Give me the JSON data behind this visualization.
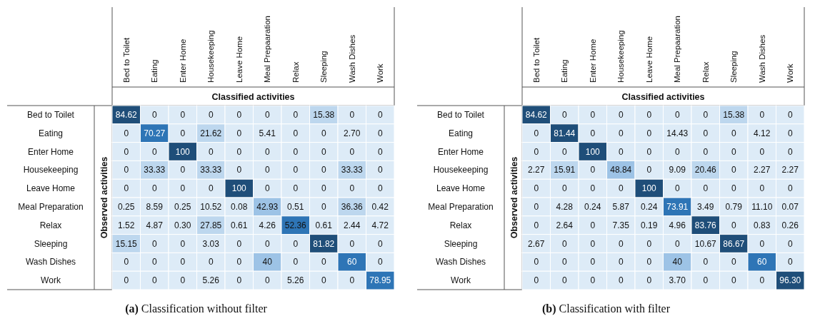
{
  "chart_data": [
    {
      "type": "heatmap",
      "title": "(a) Classification without filter",
      "xlabel": "Classified activities",
      "ylabel": "Observed activities",
      "categories": [
        "Bed to Toilet",
        "Eating",
        "Enter Home",
        "Housekeeping",
        "Leave Home",
        "Meal Prepaaration",
        "Relax",
        "Sleeping",
        "Wash Dishes",
        "Work"
      ],
      "y_categories": [
        "Bed to Toilet",
        "Eating",
        "Enter Home",
        "Housekeeping",
        "Leave Home",
        "Meal Preparation",
        "Relax",
        "Sleeping",
        "Wash Dishes",
        "Work"
      ],
      "cells": [
        [
          84.62,
          0,
          0,
          0,
          0,
          0,
          0,
          15.38,
          0,
          0
        ],
        [
          0,
          70.27,
          0,
          21.62,
          0,
          5.41,
          0,
          0,
          2.7,
          0
        ],
        [
          0,
          0,
          100,
          0,
          0,
          0,
          0,
          0,
          0,
          0
        ],
        [
          0,
          33.33,
          0,
          33.33,
          0,
          0,
          0,
          0,
          33.33,
          0
        ],
        [
          0,
          0,
          0,
          0,
          100,
          0,
          0,
          0,
          0,
          0
        ],
        [
          0.25,
          8.59,
          0.25,
          10.52,
          0.08,
          42.93,
          0.51,
          0,
          36.36,
          0.42
        ],
        [
          1.52,
          4.87,
          0.3,
          27.85,
          0.61,
          4.26,
          52.36,
          0.61,
          2.44,
          4.72
        ],
        [
          15.15,
          0,
          0,
          3.03,
          0,
          0,
          0,
          81.82,
          0,
          0
        ],
        [
          0,
          0,
          0,
          0,
          0,
          40,
          0,
          0,
          60,
          0
        ],
        [
          0,
          0,
          0,
          5.26,
          0,
          0,
          5.26,
          0,
          0,
          78.95
        ]
      ],
      "cell_labels": [
        [
          "84.62",
          "0",
          "0",
          "0",
          "0",
          "0",
          "0",
          "15.38",
          "0",
          "0"
        ],
        [
          "0",
          "70.27",
          "0",
          "21.62",
          "0",
          "5.41",
          "0",
          "0",
          "2.70",
          "0"
        ],
        [
          "0",
          "0",
          "100",
          "0",
          "0",
          "0",
          "0",
          "0",
          "0",
          "0"
        ],
        [
          "0",
          "33.33",
          "0",
          "33.33",
          "0",
          "0",
          "0",
          "0",
          "33.33",
          "0"
        ],
        [
          "0",
          "0",
          "0",
          "0",
          "100",
          "0",
          "0",
          "0",
          "0",
          "0"
        ],
        [
          "0.25",
          "8.59",
          "0.25",
          "10.52",
          "0.08",
          "42.93",
          "0.51",
          "0",
          "36.36",
          "0.42"
        ],
        [
          "1.52",
          "4.87",
          "0.30",
          "27.85",
          "0.61",
          "4.26",
          "52.36",
          "0.61",
          "2.44",
          "4.72"
        ],
        [
          "15.15",
          "0",
          "0",
          "3.03",
          "0",
          "0",
          "0",
          "81.82",
          "0",
          "0"
        ],
        [
          "0",
          "0",
          "0",
          "0",
          "0",
          "40",
          "0",
          "0",
          "60",
          "0"
        ],
        [
          "0",
          "0",
          "0",
          "5.26",
          "0",
          "0",
          "5.26",
          "0",
          "0",
          "78.95"
        ]
      ]
    },
    {
      "type": "heatmap",
      "title": "(b) Classification with filter",
      "xlabel": "Classified activities",
      "ylabel": "Observed activities",
      "categories": [
        "Bed to Toilet",
        "Eating",
        "Enter Home",
        "Housekeeping",
        "Leave Home",
        "Meal Prepaaration",
        "Relax",
        "Sleeping",
        "Wash Dishes",
        "Work"
      ],
      "y_categories": [
        "Bed to Toilet",
        "Eating",
        "Enter Home",
        "Housekeeping",
        "Leave Home",
        "Meal Preparation",
        "Relax",
        "Sleeping",
        "Wash Dishes",
        "Work"
      ],
      "cells": [
        [
          84.62,
          0,
          0,
          0,
          0,
          0,
          0,
          15.38,
          0,
          0
        ],
        [
          0,
          81.44,
          0,
          0,
          0,
          14.43,
          0,
          0,
          4.12,
          0
        ],
        [
          0,
          0,
          100,
          0,
          0,
          0,
          0,
          0,
          0,
          0
        ],
        [
          2.27,
          15.91,
          0,
          48.84,
          0,
          9.09,
          20.46,
          0,
          2.27,
          2.27
        ],
        [
          0,
          0,
          0,
          0,
          100,
          0,
          0,
          0,
          0,
          0
        ],
        [
          0,
          4.28,
          0.24,
          5.87,
          0.24,
          73.91,
          3.49,
          0.79,
          11.1,
          0.07
        ],
        [
          0,
          2.64,
          0,
          7.35,
          0.19,
          4.96,
          83.76,
          0,
          0.83,
          0.26
        ],
        [
          2.67,
          0,
          0,
          0,
          0,
          0,
          10.67,
          86.67,
          0,
          0
        ],
        [
          0,
          0,
          0,
          0,
          0,
          40,
          0,
          0,
          60,
          0
        ],
        [
          0,
          0,
          0,
          0,
          0,
          3.7,
          0,
          0,
          0,
          96.3
        ]
      ],
      "cell_labels": [
        [
          "84.62",
          "0",
          "0",
          "0",
          "0",
          "0",
          "0",
          "15.38",
          "0",
          "0"
        ],
        [
          "0",
          "81.44",
          "0",
          "0",
          "0",
          "14.43",
          "0",
          "0",
          "4.12",
          "0"
        ],
        [
          "0",
          "0",
          "100",
          "0",
          "0",
          "0",
          "0",
          "0",
          "0",
          "0"
        ],
        [
          "2.27",
          "15.91",
          "0",
          "48.84",
          "0",
          "9.09",
          "20.46",
          "0",
          "2.27",
          "2.27"
        ],
        [
          "0",
          "0",
          "0",
          "0",
          "100",
          "0",
          "0",
          "0",
          "0",
          "0"
        ],
        [
          "0",
          "4.28",
          "0.24",
          "5.87",
          "0.24",
          "73.91",
          "3.49",
          "0.79",
          "11.10",
          "0.07"
        ],
        [
          "0",
          "2.64",
          "0",
          "7.35",
          "0.19",
          "4.96",
          "83.76",
          "0",
          "0.83",
          "0.26"
        ],
        [
          "2.67",
          "0",
          "0",
          "0",
          "0",
          "0",
          "10.67",
          "86.67",
          "0",
          "0"
        ],
        [
          "0",
          "0",
          "0",
          "0",
          "0",
          "40",
          "0",
          "0",
          "60",
          "0"
        ],
        [
          "0",
          "0",
          "0",
          "0",
          "0",
          "3.70",
          "0",
          "0",
          "0",
          "96.30"
        ]
      ]
    }
  ]
}
